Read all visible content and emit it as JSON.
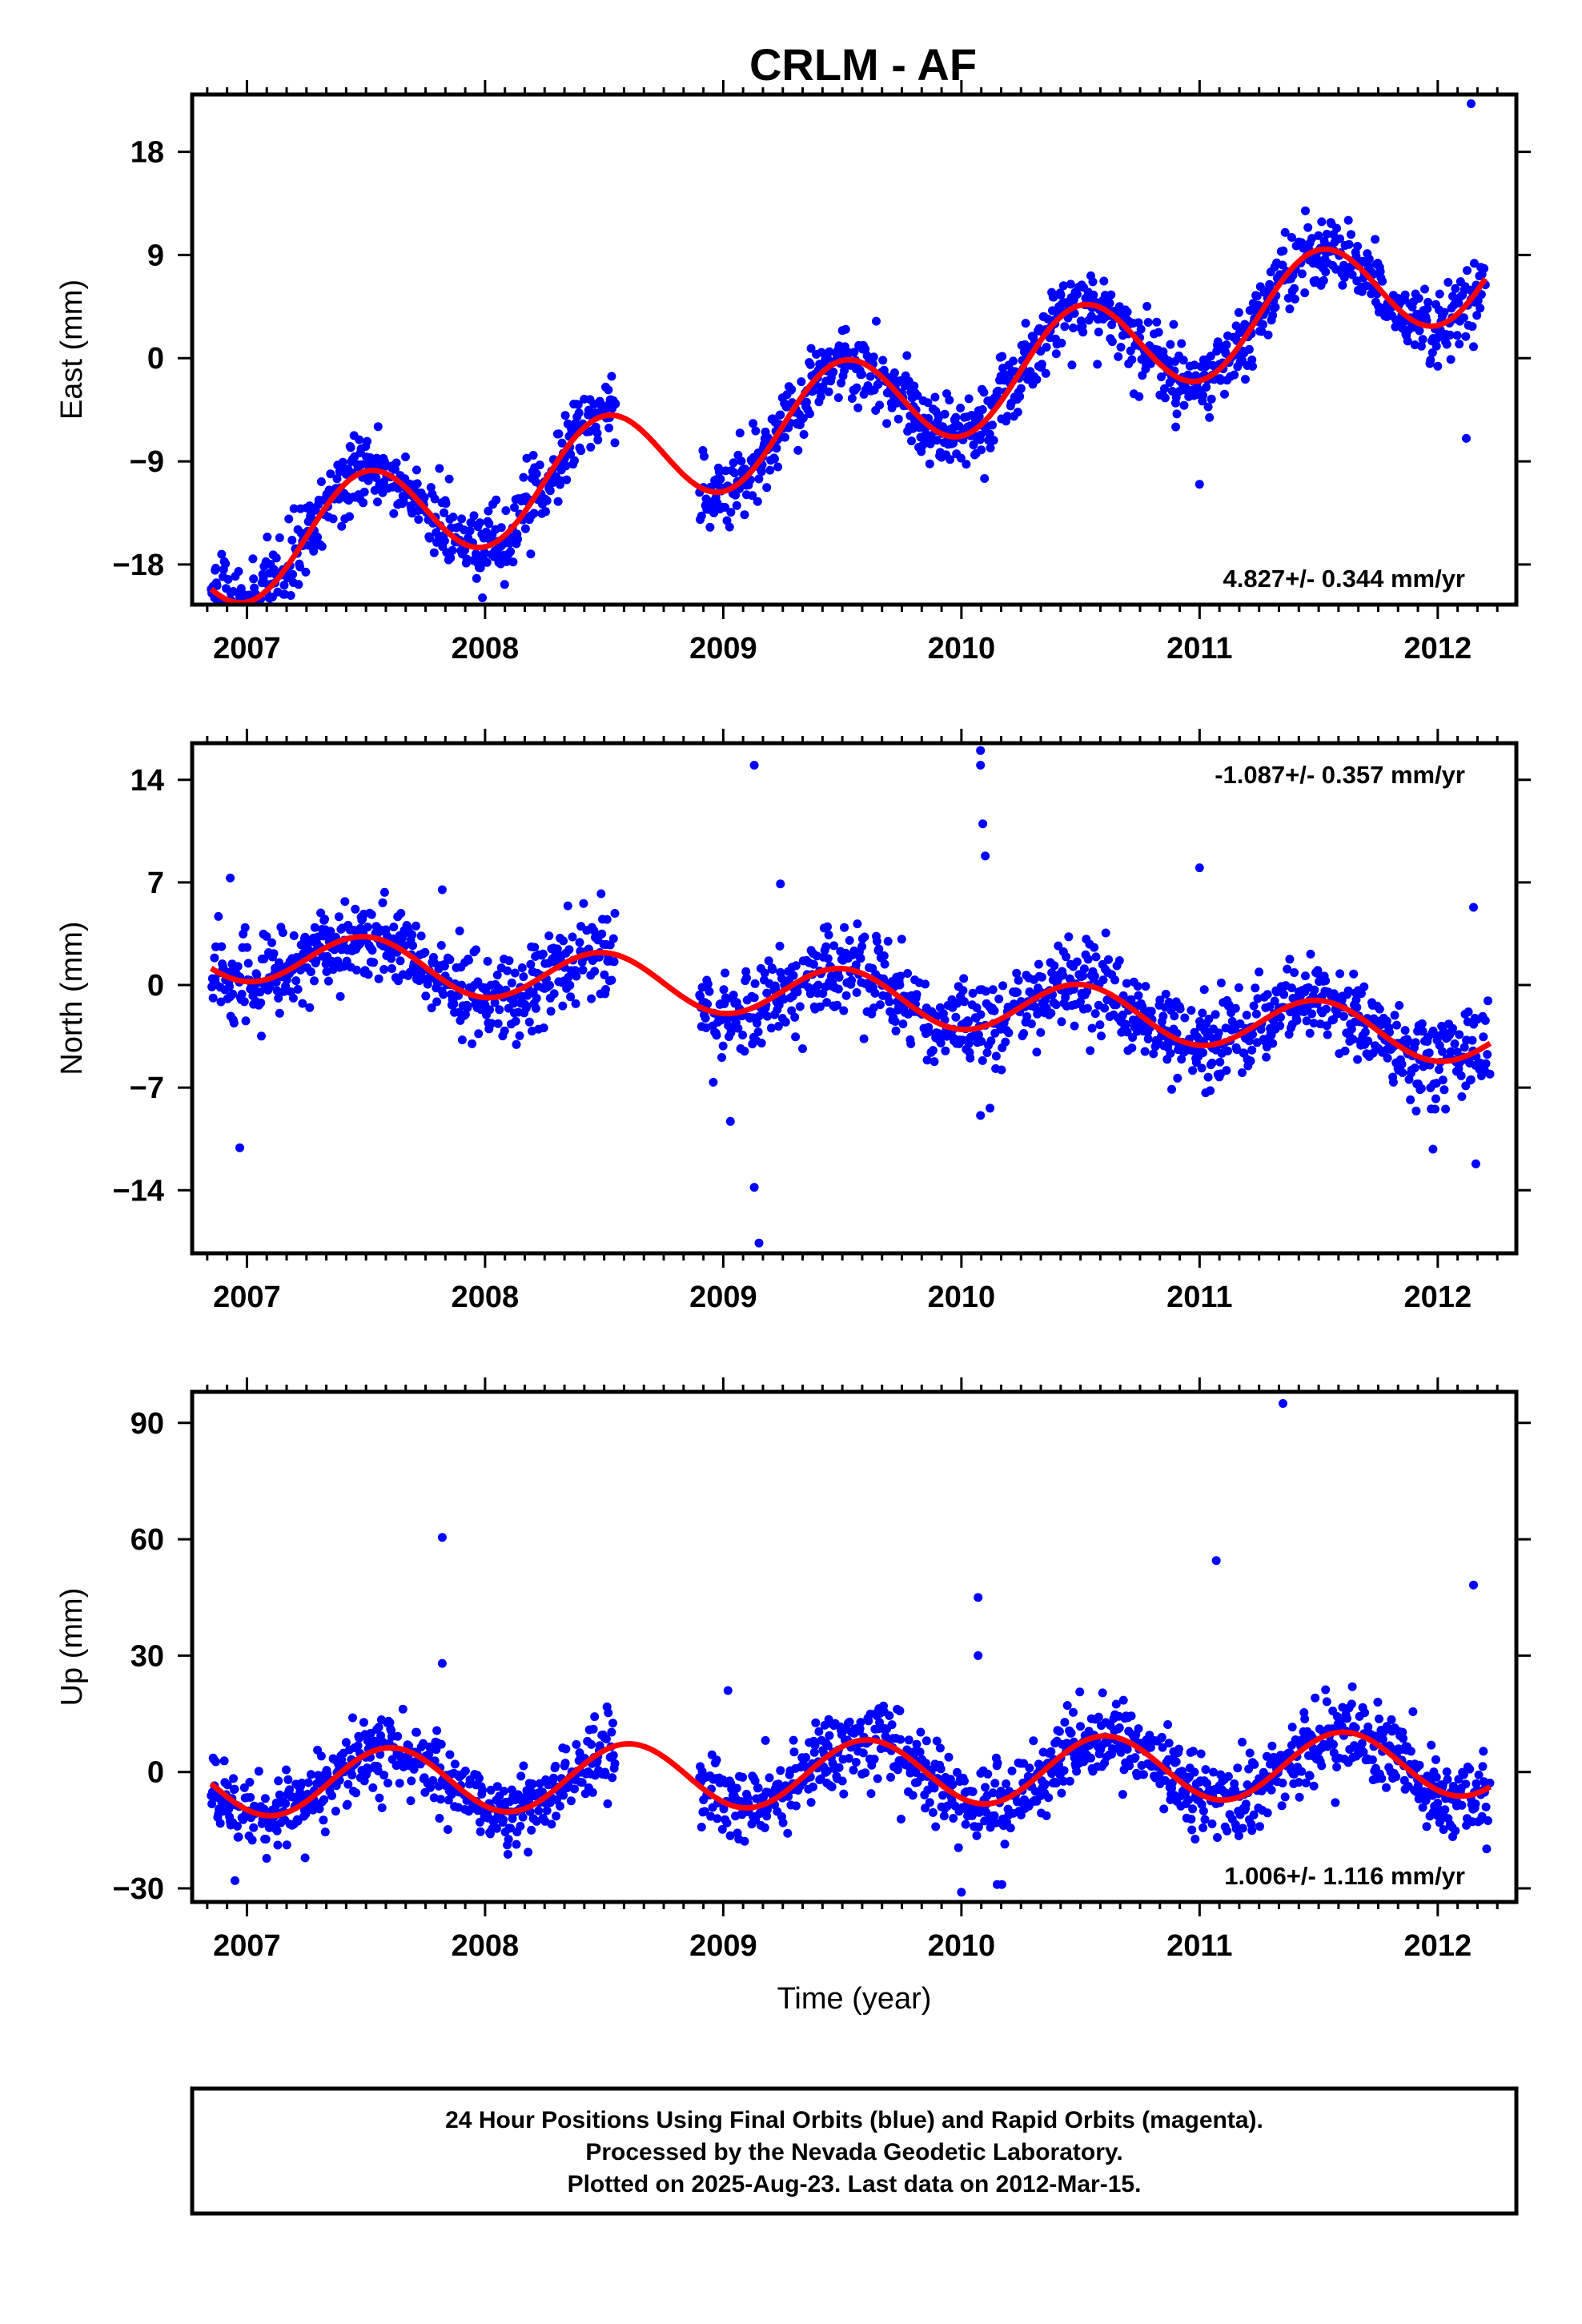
{
  "title": "CRLM - AF",
  "footer": {
    "lines": [
      "24 Hour Positions Using Final Orbits (blue) and Rapid Orbits (magenta).",
      "Processed by the Nevada Geodetic Laboratory.",
      "Plotted on 2025-Aug-23. Last data on 2012-Mar-15."
    ]
  },
  "colors": {
    "points": "#0000ff",
    "model": "#ff0000",
    "frame": "#000000"
  },
  "chart_data": [
    {
      "type": "scatter",
      "title": "CRLM - AF",
      "xlabel": "",
      "ylabel": "East (mm)",
      "xlim": [
        2006.77,
        2012.33
      ],
      "ylim": [
        -21.5,
        23
      ],
      "xticks": [
        "2007",
        "2008",
        "2009",
        "2010",
        "2011",
        "2012"
      ],
      "yticks": [
        "18",
        "9",
        "0",
        "-9",
        "-18"
      ],
      "ytick_values": [
        18,
        9,
        0,
        -9,
        -18
      ],
      "grid": false,
      "rate_label": "4.827+/- 0.344 mm/yr",
      "rate_position": "bottom-right",
      "data_range": [
        2006.85,
        2012.2
      ],
      "gaps": [
        [
          2008.55,
          2008.9
        ]
      ],
      "series": [
        {
          "name": "",
          "model": {
            "rate": 4.827,
            "intercept": -17.5,
            "annual_amp": 4.5,
            "annual_peak": 2007.5
          },
          "noise": 1.6,
          "outliers": [
            [
              2012.14,
              22.2
            ],
            [
              2012.12,
              -7.0
            ],
            [
              2011.0,
              -11.0
            ],
            [
              2010.9,
              -6.0
            ],
            [
              2012.15,
              1.0
            ]
          ]
        }
      ]
    },
    {
      "type": "scatter",
      "xlabel": "",
      "ylabel": "North (mm)",
      "xlim": [
        2006.77,
        2012.33
      ],
      "ylim": [
        -18.3,
        16.5
      ],
      "xticks": [
        "2007",
        "2008",
        "2009",
        "2010",
        "2011",
        "2012"
      ],
      "yticks": [
        "14",
        "7",
        "0",
        "-7",
        "-14"
      ],
      "ytick_values": [
        14,
        7,
        0,
        -7,
        -14
      ],
      "grid": false,
      "rate_label": "-1.087+/- 0.357 mm/yr",
      "rate_position": "top-right",
      "data_range": [
        2006.85,
        2012.22
      ],
      "gaps": [
        [
          2008.55,
          2008.9
        ]
      ],
      "series": [
        {
          "name": "",
          "model": {
            "rate": -1.087,
            "intercept": 2.2,
            "annual_amp": 1.8,
            "annual_peak": 2007.5
          },
          "noise": 1.5,
          "outliers": [
            [
              2009.13,
              15.0
            ],
            [
              2010.08,
              16.0
            ],
            [
              2010.08,
              15.0
            ],
            [
              2010.09,
              11.0
            ],
            [
              2010.1,
              8.8
            ],
            [
              2006.93,
              7.3
            ],
            [
              2009.13,
              -13.8
            ],
            [
              2009.15,
              -17.6
            ],
            [
              2009.03,
              -9.3
            ],
            [
              2006.97,
              -11.1
            ],
            [
              2010.08,
              -8.9
            ],
            [
              2010.12,
              -8.4
            ],
            [
              2011.98,
              -11.2
            ],
            [
              2012.16,
              -12.2
            ],
            [
              2012.15,
              5.3
            ],
            [
              2011.0,
              8.0
            ],
            [
              2009.24,
              6.9
            ],
            [
              2007.82,
              6.5
            ]
          ]
        }
      ]
    },
    {
      "type": "scatter",
      "xlabel": "Time (year)",
      "ylabel": "Up (mm)",
      "xlim": [
        2006.77,
        2012.33
      ],
      "ylim": [
        -33.5,
        98
      ],
      "xticks": [
        "2007",
        "2008",
        "2009",
        "2010",
        "2011",
        "2012"
      ],
      "yticks": [
        "90",
        "60",
        "30",
        "0",
        "-30"
      ],
      "ytick_values": [
        90,
        60,
        30,
        0,
        -30
      ],
      "grid": false,
      "rate_label": "1.006+/- 1.116 mm/yr",
      "rate_position": "bottom-right",
      "data_range": [
        2006.85,
        2012.22
      ],
      "gaps": [
        [
          2008.55,
          2008.9
        ]
      ],
      "series": [
        {
          "name": "",
          "model": {
            "rate": 1.006,
            "intercept": -3.0,
            "annual_amp": 8.5,
            "annual_peak": 2007.6
          },
          "noise": 5.0,
          "outliers": [
            [
              2011.35,
              95.0
            ],
            [
              2007.82,
              60.5
            ],
            [
              2011.07,
              54.5
            ],
            [
              2012.15,
              48.2
            ],
            [
              2010.07,
              45.0
            ],
            [
              2010.07,
              30.0
            ],
            [
              2007.82,
              28.0
            ],
            [
              2009.02,
              21.0
            ],
            [
              2006.95,
              -28.0
            ],
            [
              2010.0,
              -31.0
            ],
            [
              2010.15,
              -29.0
            ],
            [
              2010.17,
              -29.0
            ]
          ]
        }
      ]
    }
  ]
}
